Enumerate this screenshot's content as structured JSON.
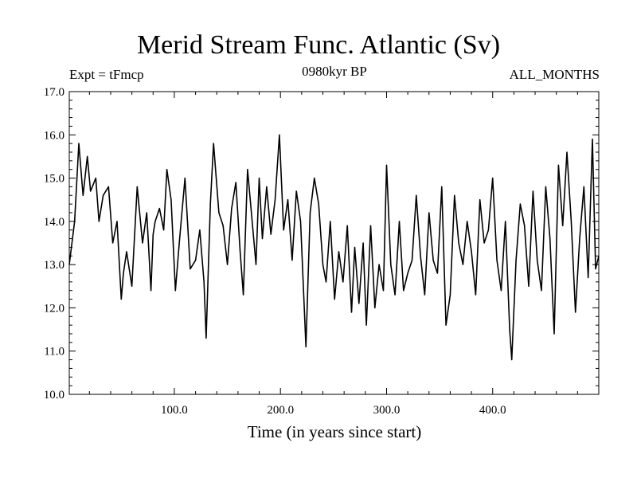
{
  "chart_data": {
    "type": "line",
    "title": "Merid Stream Func. Atlantic (Sv)",
    "experiment_label": "Expt = tFmcp",
    "subtitle": "0980kyr BP",
    "period_label": "ALL_MONTHS",
    "xlabel": "Time (in years since start)",
    "ylabel": "",
    "xlim": [
      1,
      500
    ],
    "ylim": [
      10.0,
      17.0
    ],
    "xticks": [
      100,
      200,
      300,
      400
    ],
    "xtick_labels": [
      "100.0",
      "200.0",
      "300.0",
      "400.0"
    ],
    "yticks": [
      10,
      11,
      12,
      13,
      14,
      15,
      16,
      17
    ],
    "ytick_labels": [
      "10.0",
      "11.0",
      "12.0",
      "13.0",
      "14.0",
      "15.0",
      "16.0",
      "17.0"
    ],
    "grid": false,
    "series": [
      {
        "name": "Merid Stream Func. Atlantic",
        "color": "#000000",
        "x": [
          1,
          6,
          10,
          14,
          18,
          21,
          26,
          29,
          33,
          38,
          42,
          46,
          50,
          52,
          55,
          60,
          65,
          70,
          74,
          78,
          80,
          82,
          86,
          90,
          93,
          97,
          101,
          105,
          110,
          115,
          120,
          124,
          128,
          130,
          134,
          137,
          142,
          146,
          150,
          154,
          158,
          162,
          165,
          169,
          173,
          177,
          180,
          183,
          187,
          191,
          195,
          199,
          203,
          207,
          211,
          215,
          219,
          224,
          228,
          232,
          236,
          240,
          243,
          247,
          251,
          255,
          259,
          263,
          267,
          270,
          274,
          278,
          281,
          285,
          289,
          293,
          297,
          300,
          304,
          308,
          312,
          316,
          320,
          324,
          328,
          332,
          336,
          340,
          344,
          348,
          352,
          356,
          360,
          364,
          368,
          372,
          376,
          380,
          384,
          388,
          392,
          396,
          400,
          404,
          408,
          412,
          416,
          418,
          422,
          426,
          430,
          434,
          438,
          442,
          446,
          450,
          454,
          458,
          462,
          466,
          470,
          474,
          478,
          482,
          486,
          490,
          494,
          497,
          500
        ],
        "values": [
          13.0,
          14.0,
          15.8,
          14.6,
          15.5,
          14.7,
          15.0,
          14.0,
          14.6,
          14.8,
          13.5,
          14.0,
          12.2,
          12.8,
          13.3,
          12.5,
          14.8,
          13.5,
          14.2,
          12.4,
          13.7,
          14.0,
          14.3,
          13.8,
          15.2,
          14.5,
          12.4,
          13.6,
          15.0,
          12.9,
          13.1,
          13.8,
          12.6,
          11.3,
          14.4,
          15.8,
          14.2,
          13.9,
          13.0,
          14.3,
          14.9,
          13.3,
          12.3,
          15.2,
          14.1,
          13.0,
          15.0,
          13.6,
          14.8,
          13.7,
          14.5,
          16.0,
          13.8,
          14.5,
          13.1,
          14.7,
          14.0,
          11.1,
          14.2,
          15.0,
          14.4,
          13.0,
          12.6,
          14.0,
          12.2,
          13.3,
          12.6,
          13.9,
          11.9,
          13.4,
          12.1,
          13.5,
          11.6,
          13.9,
          12.0,
          13.0,
          12.4,
          15.3,
          13.0,
          12.3,
          14.0,
          12.4,
          12.8,
          13.1,
          14.6,
          13.2,
          12.3,
          14.2,
          13.1,
          12.8,
          14.8,
          11.6,
          12.3,
          14.6,
          13.5,
          13.0,
          14.0,
          13.3,
          12.3,
          14.5,
          13.5,
          13.8,
          15.0,
          13.1,
          12.4,
          14.0,
          11.5,
          10.8,
          13.1,
          14.4,
          13.9,
          12.5,
          14.7,
          13.1,
          12.4,
          14.8,
          13.6,
          11.4,
          15.3,
          13.9,
          15.6,
          14.0,
          11.9,
          13.6,
          14.8,
          12.7,
          15.9,
          12.9,
          13.2
        ]
      }
    ]
  }
}
